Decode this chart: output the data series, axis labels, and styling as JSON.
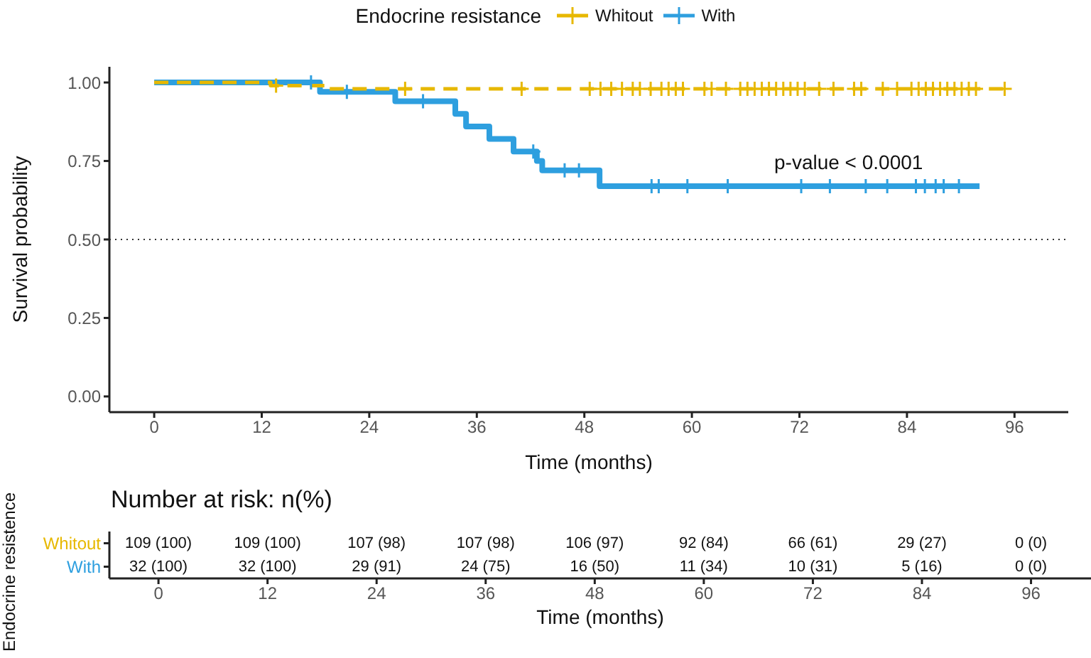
{
  "chart_data": [
    {
      "type": "step",
      "xlabel": "Time (months)",
      "ylabel": "Survival probability",
      "legend_title": "Endocrine resistance",
      "legend": "top",
      "grid": false,
      "xlim": [
        -5,
        102
      ],
      "xticks": [
        0,
        12,
        24,
        36,
        48,
        60,
        72,
        84,
        96
      ],
      "ylim": [
        -0.05,
        1.05
      ],
      "yticks": [
        {
          "value": 0,
          "label": "0.00"
        },
        {
          "value": 0.25,
          "label": "0.25"
        },
        {
          "value": 0.5,
          "label": "0.50"
        },
        {
          "value": 0.75,
          "label": "0.75"
        },
        {
          "value": 1,
          "label": "1.00"
        }
      ],
      "ref_lines": [
        {
          "axis": "y",
          "value": 0.5,
          "line_style": "dotted",
          "color": "#333333"
        }
      ],
      "annotations": [
        "p-value < 0.0001"
      ],
      "series": [
        {
          "name": "Whitout",
          "type": "step",
          "color": "#e7b800",
          "line_style": "dashed",
          "x": [
            0,
            13,
            19,
            94.9
          ],
          "values": [
            1,
            0.99,
            0.98,
            0.98
          ]
        },
        {
          "name": "With",
          "type": "step",
          "color": "#2e9fdf",
          "line_style": "solid",
          "x": [
            0,
            18.5,
            26.9,
            33.6,
            34.8,
            37.4,
            40.1,
            42.7,
            43.3,
            49.7,
            92.1
          ],
          "values": [
            1,
            0.97,
            0.94,
            0.9,
            0.86,
            0.82,
            0.78,
            0.75,
            0.72,
            0.67,
            0.67
          ]
        },
        {
          "type": "scatter",
          "color": "#e7b800",
          "marker": "cross",
          "x": [
            13.6,
            28,
            41,
            48.6,
            49.8,
            51,
            52.2,
            53.4,
            54.2,
            55.4,
            56.6,
            57.4,
            58.2,
            59,
            61.4,
            62.2,
            63.8,
            65.4,
            66.2,
            67,
            67.8,
            68.6,
            69.4,
            70.2,
            71,
            71.8,
            72.6,
            74.2,
            75.8,
            78.1,
            78.9,
            81.3,
            82.9,
            84.5,
            85.3,
            86.1,
            86.9,
            87.7,
            88.5,
            89.3,
            90.1,
            90.9,
            91.7,
            94.9
          ],
          "values": [
            0.99,
            0.98,
            0.98,
            0.98,
            0.98,
            0.98,
            0.98,
            0.98,
            0.98,
            0.98,
            0.98,
            0.98,
            0.98,
            0.98,
            0.98,
            0.98,
            0.98,
            0.98,
            0.98,
            0.98,
            0.98,
            0.98,
            0.98,
            0.98,
            0.98,
            0.98,
            0.98,
            0.98,
            0.98,
            0.98,
            0.98,
            0.98,
            0.98,
            0.98,
            0.98,
            0.98,
            0.98,
            0.98,
            0.98,
            0.98,
            0.98,
            0.98,
            0.98,
            0.98
          ]
        },
        {
          "type": "scatter",
          "color": "#2e9fdf",
          "marker": "cross",
          "x": [
            17.5,
            21.5,
            30,
            42.3,
            45.8,
            47.4,
            55.5,
            56.3,
            59.5,
            64,
            72.2,
            75.4,
            79.4,
            81.8,
            85,
            86,
            87.2,
            88.1,
            89.8
          ],
          "values": [
            1,
            0.97,
            0.94,
            0.78,
            0.72,
            0.72,
            0.67,
            0.67,
            0.67,
            0.67,
            0.67,
            0.67,
            0.67,
            0.67,
            0.67,
            0.67,
            0.67,
            0.67,
            0.67
          ]
        }
      ]
    },
    {
      "type": "heatmap",
      "title": "Number at risk: n(%)",
      "xlabel": "Time (months)",
      "ylabel": "Endocrine resistence",
      "categories": [
        "0",
        "12",
        "24",
        "36",
        "48",
        "60",
        "72",
        "84",
        "96"
      ],
      "y_categories": [
        "Whitout",
        "With"
      ],
      "colors": [
        "#e7b800",
        "#2e9fdf"
      ],
      "cells": [
        [
          null,
          null,
          null,
          null,
          null,
          null,
          null,
          null,
          null
        ],
        [
          null,
          null,
          null,
          null,
          null,
          null,
          null,
          null,
          null
        ]
      ],
      "cell_labels": [
        [
          "109 (100)",
          "109 (100)",
          "107 (98)",
          "107 (98)",
          "106 (97)",
          "92 (84)",
          "66 (61)",
          "29 (27)",
          "0 (0)"
        ],
        [
          "32 (100)",
          "32 (100)",
          "29 (91)",
          "24 (75)",
          "16 (50)",
          "11 (34)",
          "10 (31)",
          "5 (16)",
          "0 (0)"
        ]
      ]
    }
  ]
}
